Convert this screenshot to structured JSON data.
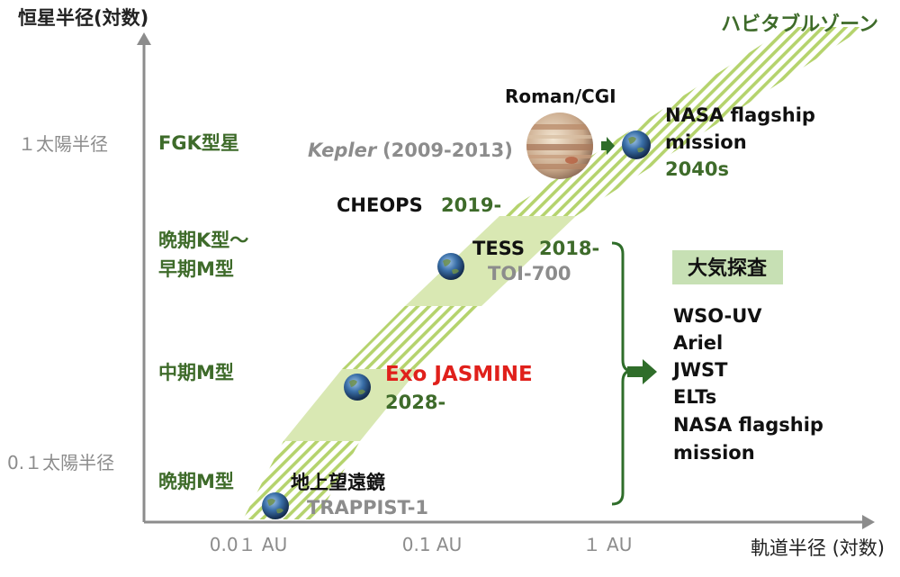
{
  "axes": {
    "y_title": "恒星半径(対数)",
    "x_title": "軌道半径 (対数)",
    "y_ticks": [
      "１太陽半径",
      "0.１太陽半径"
    ],
    "x_ticks": [
      "0.0１ AU",
      "0.1 AU",
      "１ AU"
    ]
  },
  "star_types": [
    "FGK型星",
    "晩期K型〜",
    "早期M型",
    "中期M型",
    "晩期M型"
  ],
  "habitable_zone_label": "ハビタブルゾーン",
  "missions": {
    "roman": "Roman/CGI",
    "kepler_name": "Kepler",
    "kepler_years": "(2009-2013)",
    "cheops_name": "CHEOPS",
    "cheops_year": "2019-",
    "tess_name": "TESS",
    "tess_year": "2018-",
    "toi": "TOI-700",
    "exo_name": "Exo JASMINE",
    "exo_year": "2028-",
    "ground_name": "地上望遠鏡",
    "trappist": "TRAPPIST-1",
    "nasa_line1": "NASA flagship",
    "nasa_line2": "mission",
    "nasa_year": "2040s"
  },
  "atmosphere": {
    "title": "大気探査",
    "items": [
      "WSO-UV",
      "Ariel",
      "JWST",
      "ELTs",
      "NASA flagship",
      "mission"
    ]
  },
  "colors": {
    "green_text": "#3e6b2a",
    "gray_text": "#8c8c8c",
    "red_text": "#e0201b",
    "hz_fill": "#d9e8b3",
    "hz_stripe": "#b5d36d",
    "axis": "#8c8c8c",
    "box_fill": "#c7e0b4"
  }
}
